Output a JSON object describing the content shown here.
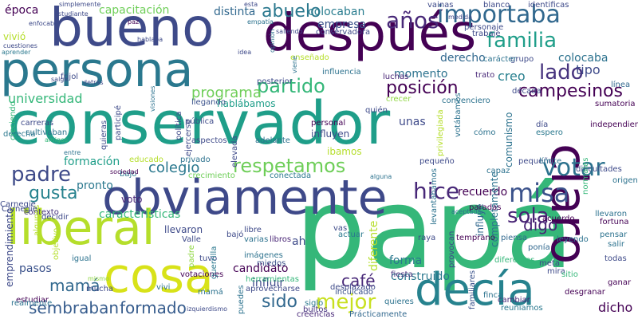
{
  "words": [
    {
      "text": "conservador",
      "color": "#1f9e89"
    },
    {
      "text": "papá",
      "color": "#35b779"
    },
    {
      "text": "obviamente",
      "color": "#3e4989"
    },
    {
      "text": "persona",
      "color": "#2a788e"
    },
    {
      "text": "bueno",
      "color": "#3e4a89"
    },
    {
      "text": "después",
      "color": "#440154"
    },
    {
      "text": "liberal",
      "color": "#b5de2b"
    },
    {
      "text": "cosa",
      "color": "#d8e219"
    },
    {
      "text": "claro",
      "color": "#440154"
    },
    {
      "text": "decía",
      "color": "#26828e"
    },
    {
      "text": "importaba",
      "color": "#31688e"
    },
    {
      "text": "familia",
      "color": "#1f9e89"
    },
    {
      "text": "años",
      "color": "#482878"
    },
    {
      "text": "votar",
      "color": "#2c728e"
    },
    {
      "text": "misa",
      "color": "#3b528b"
    },
    {
      "text": "sola",
      "color": "#482475"
    },
    {
      "text": "padre",
      "color": "#3e4a89"
    },
    {
      "text": "gusta",
      "color": "#26828e"
    },
    {
      "text": "hice",
      "color": "#482878"
    },
    {
      "text": "partido",
      "color": "#35b779"
    },
    {
      "text": "respetamos",
      "color": "#6ece58"
    },
    {
      "text": "lado",
      "color": "#46337e"
    },
    {
      "text": "abuelo",
      "color": "#2a788e"
    },
    {
      "text": "posición",
      "color": "#440154"
    },
    {
      "text": "campesinos",
      "color": "#440154"
    },
    {
      "text": "mejor",
      "color": "#c8e020"
    },
    {
      "text": "mamá",
      "color": "#31688e"
    },
    {
      "text": "sido",
      "color": "#31688e"
    },
    {
      "text": "café",
      "color": "#482878"
    },
    {
      "text": "sembraban",
      "color": "#365c8d"
    },
    {
      "text": "formado",
      "color": "#365c8d"
    },
    {
      "text": "dicho",
      "color": "#440154"
    },
    {
      "text": "universidad",
      "color": "#35b779"
    },
    {
      "text": "programa",
      "color": "#6ece58"
    },
    {
      "text": "colegio",
      "color": "#2a788e"
    },
    {
      "text": "digo",
      "color": "#482475"
    },
    {
      "text": "tipo",
      "color": "#3e4a89"
    },
    {
      "text": "creo",
      "color": "#277f8e"
    },
    {
      "text": "colocaba",
      "color": "#2c728e"
    },
    {
      "text": "capacitación",
      "color": "#6ece58"
    },
    {
      "text": "distinta",
      "color": "#31688e"
    },
    {
      "text": "colocaban",
      "color": "#287c8e"
    },
    {
      "text": "empresa",
      "color": "#3b528b"
    },
    {
      "text": "época",
      "color": "#440154"
    },
    {
      "text": "vivió",
      "color": "#b5de2b"
    },
    {
      "text": "características",
      "color": "#35b779"
    },
    {
      "text": "llevaron",
      "color": "#3e4a89"
    },
    {
      "text": "candidato",
      "color": "#440154"
    },
    {
      "text": "influir",
      "color": "#3e4a89"
    },
    {
      "text": "construido",
      "color": "#2a788e"
    },
    {
      "text": "forma",
      "color": "#2a788e"
    },
    {
      "text": "recuerdo",
      "color": "#440154"
    },
    {
      "text": "momento",
      "color": "#2c728e"
    },
    {
      "text": "derecho",
      "color": "#31688e"
    },
    {
      "text": "unas",
      "color": "#3e4a89"
    },
    {
      "text": "influyen",
      "color": "#3e4a89"
    },
    {
      "text": "ibamos",
      "color": "#b5de2b"
    },
    {
      "text": "formación",
      "color": "#1f9e89"
    },
    {
      "text": "pronto",
      "color": "#2a788e"
    },
    {
      "text": "voto",
      "color": "#482878"
    },
    {
      "text": "emprendimiento",
      "color": "#3e4a89"
    },
    {
      "text": "pasos",
      "color": "#3b528b"
    },
    {
      "text": "comunismo",
      "color": "#2c728e"
    },
    {
      "text": "completamente",
      "color": "#2c728e"
    },
    {
      "text": "influye",
      "color": "#31688e"
    },
    {
      "text": "libros",
      "color": "#482475"
    },
    {
      "text": "estudiar",
      "color": "#440154"
    },
    {
      "text": "hablábamos",
      "color": "#1f9e89"
    },
    {
      "text": "llegando",
      "color": "#3b528b"
    },
    {
      "text": "personal",
      "color": "#440154"
    },
    {
      "text": "adelante",
      "color": "#2c728e"
    },
    {
      "text": "luchas",
      "color": "#482475"
    },
    {
      "text": "trato",
      "color": "#482878"
    },
    {
      "text": "diferente",
      "color": "#b5de2b"
    },
    {
      "text": "desplazado",
      "color": "#3e4a89"
    },
    {
      "text": "siglo",
      "color": "#2a788e"
    },
    {
      "text": "fiesta",
      "color": "#46337e"
    },
    {
      "text": "raya",
      "color": "#3e4a89"
    },
    {
      "text": "temprano",
      "color": "#440154"
    },
    {
      "text": "piensa",
      "color": "#31688e"
    },
    {
      "text": "finca",
      "color": "#2c728e"
    },
    {
      "text": "familiares",
      "color": "#3b528b"
    },
    {
      "text": "reuniamos",
      "color": "#2a788e"
    },
    {
      "text": "cambiar",
      "color": "#482878"
    },
    {
      "text": "creencias",
      "color": "#482878"
    },
    {
      "text": "Prácticamente",
      "color": "#31688e"
    },
    {
      "text": "quieres",
      "color": "#2c728e"
    },
    {
      "text": "inculcado",
      "color": "#3b528b"
    },
    {
      "text": "bultos",
      "color": "#46337e"
    },
    {
      "text": "vivi",
      "color": "#2c728e"
    },
    {
      "text": "mucha",
      "color": "#3e4a89"
    },
    {
      "text": "mismo",
      "color": "#90d743"
    },
    {
      "text": "votaciones",
      "color": "#440154"
    },
    {
      "text": "herramientas",
      "color": "#35b779"
    },
    {
      "text": "aprovecharse",
      "color": "#3e4a89"
    },
    {
      "text": "miedos",
      "color": "#3b528b"
    },
    {
      "text": "imágenes",
      "color": "#2c728e"
    },
    {
      "text": "varias",
      "color": "#2c728e"
    },
    {
      "text": "libre",
      "color": "#3e4a89"
    },
    {
      "text": "actuar",
      "color": "#2a788e"
    },
    {
      "text": "Valle",
      "color": "#3e4a89"
    },
    {
      "text": "bajó",
      "color": "#3e4a89"
    },
    {
      "text": "igual",
      "color": "#2c728e"
    },
    {
      "text": "decidir",
      "color": "#3e4a89"
    },
    {
      "text": "contexto",
      "color": "#46337e"
    },
    {
      "text": "Carnegie",
      "color": "#3e4a89"
    },
    {
      "text": "algunos",
      "color": "#b5de2b"
    },
    {
      "text": "realmente",
      "color": "#2c728e"
    },
    {
      "text": "derecha",
      "color": "#2a788e"
    },
    {
      "text": "carreras",
      "color": "#3e4a89"
    },
    {
      "text": "cultivaban",
      "color": "#2c728e"
    },
    {
      "text": "amigos",
      "color": "#35b779"
    },
    {
      "text": "quieras",
      "color": "#3e4a89"
    },
    {
      "text": "pública",
      "color": "#3e4a89"
    },
    {
      "text": "aspectos",
      "color": "#3e4a89"
    },
    {
      "text": "educado",
      "color": "#b5de2b"
    },
    {
      "text": "privado",
      "color": "#2c728e"
    },
    {
      "text": "crecimiento",
      "color": "#6ece58"
    },
    {
      "text": "conectada",
      "color": "#2a788e"
    },
    {
      "text": "bajo",
      "color": "#2a788e"
    },
    {
      "text": "entre",
      "color": "#2c728e"
    },
    {
      "text": "objetivo",
      "color": "#b5de2b"
    },
    {
      "text": "mamá",
      "color": "#2c728e"
    },
    {
      "text": "tuvo",
      "color": "#3e4a89"
    },
    {
      "text": "guerrilla",
      "color": "#2a788e"
    },
    {
      "text": "padre",
      "color": "#90d743"
    },
    {
      "text": "participé",
      "color": "#3e4a89"
    },
    {
      "text": "ejercerse",
      "color": "#3e4a89"
    },
    {
      "text": "elevada",
      "color": "#3e4a89"
    },
    {
      "text": "ah",
      "color": "#3e4a89"
    },
    {
      "text": "vas",
      "color": "#3e4a89"
    },
    {
      "text": "puedes",
      "color": "#2c728e"
    },
    {
      "text": "izquierdismo",
      "color": "#3e4a89"
    },
    {
      "text": "política",
      "color": "#3e4a89"
    },
    {
      "text": "creciendo",
      "color": "#35b779"
    },
    {
      "text": "Carnegie",
      "color": "#3e4a89"
    },
    {
      "text": "sociedad",
      "color": "#440154"
    },
    {
      "text": "alguna",
      "color": "#2c728e"
    },
    {
      "text": "levantábamos",
      "color": "#2c728e"
    },
    {
      "text": "privilegiada",
      "color": "#b5de2b"
    },
    {
      "text": "provocan",
      "color": "#3e4a89"
    },
    {
      "text": "aceptada",
      "color": "#2c728e"
    },
    {
      "text": "pequeño",
      "color": "#3e4a89"
    },
    {
      "text": "capaz",
      "color": "#2c728e"
    },
    {
      "text": "paradas",
      "color": "#440154"
    },
    {
      "text": "acuerdo",
      "color": "#440154"
    },
    {
      "text": "ponía",
      "color": "#31688e"
    },
    {
      "text": "diferentes",
      "color": "#35b779"
    },
    {
      "text": "meta",
      "color": "#3e4a89"
    },
    {
      "text": "mira",
      "color": "#3e4a89"
    },
    {
      "text": "sitio",
      "color": "#35b779"
    },
    {
      "text": "desgranar",
      "color": "#440154"
    },
    {
      "text": "todas",
      "color": "#3e4a89"
    },
    {
      "text": "ganar",
      "color": "#440154"
    },
    {
      "text": "pensar",
      "color": "#2c728e"
    },
    {
      "text": "salir",
      "color": "#2c728e"
    },
    {
      "text": "leyendo",
      "color": "#2c728e"
    },
    {
      "text": "fortuna",
      "color": "#440154"
    },
    {
      "text": "llevaron",
      "color": "#2c728e"
    },
    {
      "text": "origen",
      "color": "#2c728e"
    },
    {
      "text": "dificultades",
      "color": "#3e4a89"
    },
    {
      "text": "normales",
      "color": "#35b779"
    },
    {
      "text": "independiente",
      "color": "#440154"
    },
    {
      "text": "sumatoria",
      "color": "#440154"
    },
    {
      "text": "línea",
      "color": "#31688e"
    },
    {
      "text": "pequeño",
      "color": "#3e4a89"
    },
    {
      "text": "límite",
      "color": "#2c728e"
    },
    {
      "text": "espero",
      "color": "#2a788e"
    },
    {
      "text": "día",
      "color": "#3e4a89"
    },
    {
      "text": "cómo",
      "color": "#2c728e"
    },
    {
      "text": "votábamos",
      "color": "#2c728e"
    },
    {
      "text": "grupo",
      "color": "#3e4a89"
    },
    {
      "text": "década",
      "color": "#3e4a89"
    },
    {
      "text": "carácter",
      "color": "#2c728e"
    },
    {
      "text": "trabaje",
      "color": "#3e4a89"
    },
    {
      "text": "personaje",
      "color": "#3e4a89"
    },
    {
      "text": "medida",
      "color": "#3e4a89"
    },
    {
      "text": "blanco",
      "color": "#3e4a89"
    },
    {
      "text": "identificas",
      "color": "#3e4a89"
    },
    {
      "text": "vainas",
      "color": "#3e4a89"
    },
    {
      "text": "convenciero",
      "color": "#2c728e"
    },
    {
      "text": "crecer",
      "color": "#90d743"
    },
    {
      "text": "quién",
      "color": "#3e4a89"
    },
    {
      "text": "influencia",
      "color": "#2c728e"
    },
    {
      "text": "enseñado",
      "color": "#b5de2b"
    },
    {
      "text": "conservadora",
      "color": "#3e4a89"
    },
    {
      "text": "saliendo",
      "color": "#3e4a89"
    },
    {
      "text": "opinión",
      "color": "#2c728e"
    },
    {
      "text": "viene",
      "color": "#2c728e"
    },
    {
      "text": "posterior",
      "color": "#3e4a89"
    },
    {
      "text": "idea",
      "color": "#3e4a89"
    },
    {
      "text": "empatía",
      "color": "#2c728e"
    },
    {
      "text": "hablaba",
      "color": "#3e4a89"
    },
    {
      "text": "frijol",
      "color": "#3e4a89"
    },
    {
      "text": "visiones",
      "color": "#2c728e"
    },
    {
      "text": "salga",
      "color": "#3e4a89"
    },
    {
      "text": "detrás",
      "color": "#3e4a89"
    },
    {
      "text": "cuestiones",
      "color": "#3e4a89"
    },
    {
      "text": "aprender",
      "color": "#2a788e"
    },
    {
      "text": "enfocaba",
      "color": "#3e4a89"
    },
    {
      "text": "estudiante",
      "color": "#3e4a89"
    },
    {
      "text": "simplemente",
      "color": "#3e4a89"
    },
    {
      "text": "paz",
      "color": "#440154"
    },
    {
      "text": "esta",
      "color": "#3e4a89"
    }
  ]
}
